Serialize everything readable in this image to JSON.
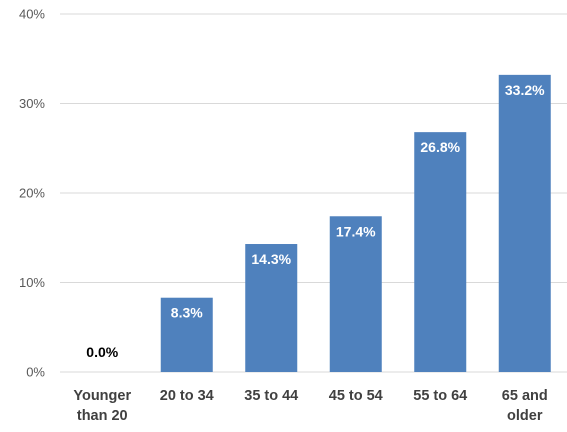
{
  "chart_data": {
    "type": "bar",
    "categories": [
      [
        "Younger",
        "than 20"
      ],
      [
        "20 to 34"
      ],
      [
        "35 to 44"
      ],
      [
        "45 to 54"
      ],
      [
        "55 to 64"
      ],
      [
        "65 and",
        "older"
      ]
    ],
    "values": [
      0.0,
      8.3,
      14.3,
      17.4,
      26.8,
      33.2
    ],
    "data_labels": [
      "0.0%",
      "8.3%",
      "14.3%",
      "17.4%",
      "26.8%",
      "33.2%"
    ],
    "ylim": [
      0,
      40
    ],
    "yticks": [
      0,
      10,
      20,
      30,
      40
    ],
    "ytick_labels": [
      "0%",
      "10%",
      "20%",
      "30%",
      "40%"
    ],
    "title": "",
    "xlabel": "",
    "ylabel": "",
    "grid": true,
    "legend": "none",
    "colors": {
      "bar": "#4f81bd",
      "grid": "#d9d9d9",
      "label_inside": "#ffffff",
      "label_outside": "#000000"
    }
  }
}
